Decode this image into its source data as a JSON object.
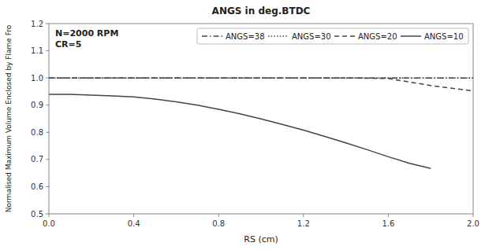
{
  "chart_data": {
    "type": "line",
    "title": "ANGS in deg.BTDC",
    "x_label": "RS (cm)",
    "y_label": "Normalised Maximum Volume Enclosed by Flame Fro",
    "annotations": [
      "N=2000 RPM",
      "CR=5"
    ],
    "xlim": [
      0,
      2
    ],
    "ylim": [
      0.5,
      1.2
    ],
    "xticks": [
      {
        "value": 0,
        "label": "0.0"
      },
      0.4,
      0.8,
      1.2,
      1.6,
      {
        "value": 2.0,
        "label": "2.0"
      }
    ],
    "yticks": [
      0.5,
      0.6,
      0.7,
      0.8,
      0.9,
      {
        "value": 1.0,
        "label": "1.0"
      },
      1.1,
      1.2
    ],
    "grid": false,
    "legend": "upper right",
    "series": [
      {
        "name": "ANGS=38",
        "line_style": "dashdot",
        "color": "#444444",
        "x": [
          0.0,
          0.2,
          0.4,
          0.6,
          0.8,
          1.0,
          1.2,
          1.4,
          1.6,
          1.8,
          2.0
        ],
        "values": [
          1.0,
          1.0,
          1.0,
          1.0,
          1.0,
          1.0,
          1.0,
          1.0,
          1.0,
          1.0,
          1.0
        ]
      },
      {
        "name": "ANGS=30",
        "line_style": "dotted",
        "color": "#444444",
        "x": [
          0.0,
          0.2,
          0.4,
          0.6,
          0.8,
          1.0,
          1.2,
          1.4,
          1.6,
          1.8,
          2.0
        ],
        "values": [
          1.0,
          1.0,
          1.0,
          1.0,
          1.0,
          1.0,
          1.0,
          1.0,
          1.0,
          1.0,
          1.0
        ]
      },
      {
        "name": "ANGS=20",
        "line_style": "dashed",
        "color": "#444444",
        "x": [
          0.0,
          0.2,
          0.4,
          0.6,
          0.8,
          1.0,
          1.2,
          1.4,
          1.6,
          1.8,
          2.0
        ],
        "values": [
          1.0,
          1.0,
          1.0,
          1.0,
          1.0,
          1.0,
          1.0,
          1.0,
          0.998,
          0.972,
          0.952
        ]
      },
      {
        "name": "ANGS=10",
        "line_style": "solid",
        "color": "#444444",
        "x": [
          0.0,
          0.1,
          0.2,
          0.3,
          0.4,
          0.5,
          0.6,
          0.7,
          0.8,
          0.9,
          1.0,
          1.1,
          1.2,
          1.3,
          1.4,
          1.5,
          1.6,
          1.7,
          1.8
        ],
        "values": [
          0.94,
          0.94,
          0.937,
          0.934,
          0.93,
          0.922,
          0.912,
          0.9,
          0.885,
          0.868,
          0.849,
          0.829,
          0.808,
          0.785,
          0.761,
          0.736,
          0.71,
          0.686,
          0.667
        ]
      }
    ]
  }
}
